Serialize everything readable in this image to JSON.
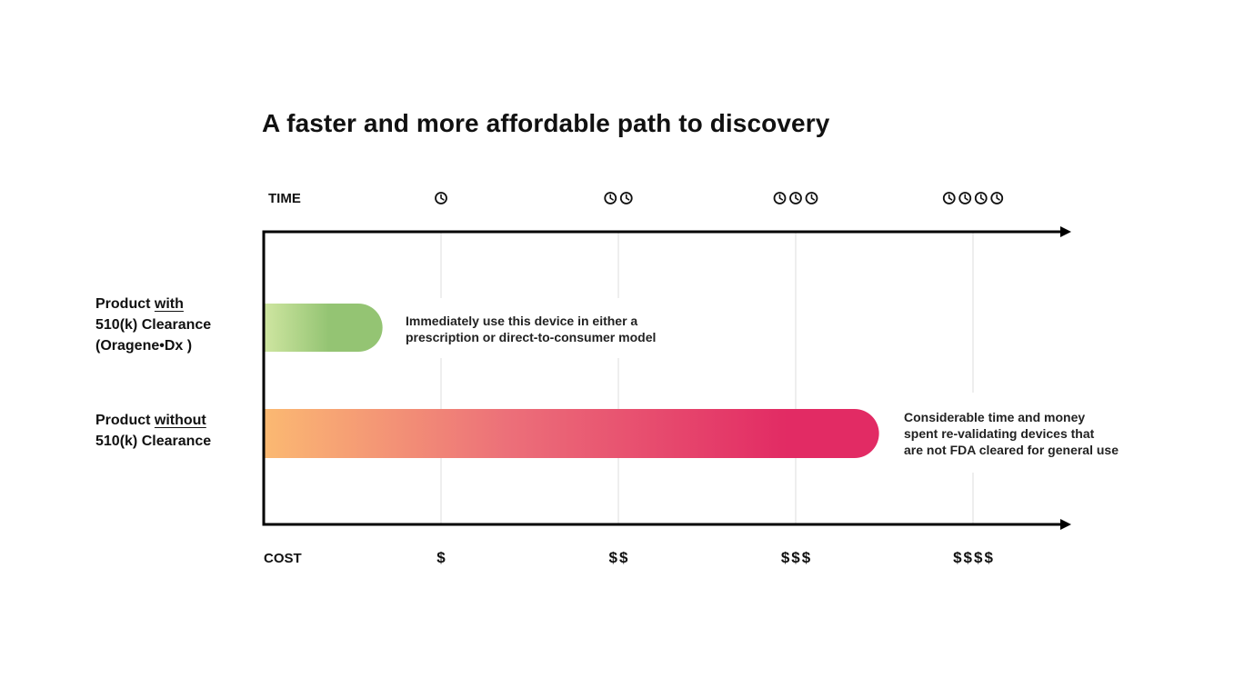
{
  "chart_data": {
    "type": "bar",
    "title": "A faster and more affordable path to discovery",
    "x_axis_top_label": "TIME",
    "x_axis_bottom_label": "COST",
    "time_ticks": [
      {
        "level": 1
      },
      {
        "level": 2
      },
      {
        "level": 3
      },
      {
        "level": 4
      }
    ],
    "cost_ticks": [
      "$",
      "$$",
      "$$$",
      "$$$$"
    ],
    "xlim": [
      0,
      4.5
    ],
    "categories": [
      {
        "before": "Product ",
        "emph": "with",
        "lines": [
          "510(k) Clearance",
          "(Oragene•Dx )"
        ]
      },
      {
        "before": "Product ",
        "emph": "without",
        "lines": [
          "510(k) Clearance"
        ]
      }
    ],
    "values": [
      0.67,
      3.47
    ],
    "annotations": [
      [
        "Immediately use this device in either a",
        "prescription or direct-to-consumer model"
      ],
      [
        "Considerable time and money",
        "spent re-validating devices that",
        "are not FDA cleared for general use"
      ]
    ],
    "colors": {
      "bar1_start": "#cfe6a1",
      "bar1_end": "#94c473",
      "bar2_start": "#fbb972",
      "bar2_mid": "#ec6f79",
      "bar2_end": "#e22b64",
      "axis": "#000000",
      "grid": "#dddddd"
    },
    "icons": {
      "time": "clock-icon"
    }
  }
}
